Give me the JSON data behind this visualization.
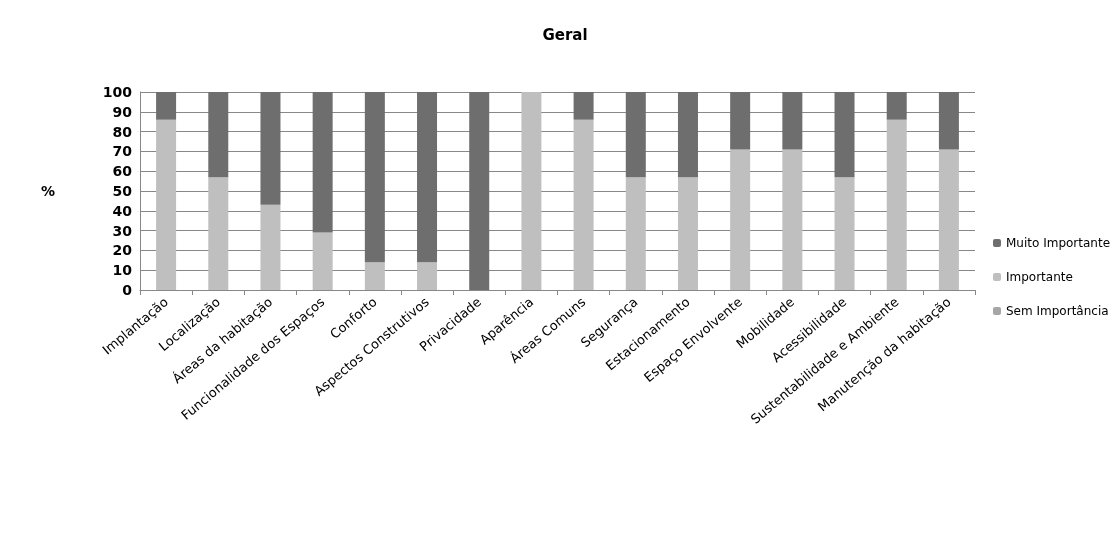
{
  "chart_data": {
    "type": "bar",
    "title": "Geral",
    "ylabel": "%",
    "stacked": true,
    "categories": [
      "Implantação",
      "Localização",
      "Áreas da habitação",
      "Funcionalidade dos Espaços",
      "Conforto",
      "Aspectos Construtivos",
      "Privacidade",
      "Aparência",
      "Áreas Comuns",
      "Segurança",
      "Estacionamento",
      "Espaço Envolvente",
      "Mobilidade",
      "Acessibilidade",
      "Sustentabilidade e Ambiente",
      "Manutenção da habitação"
    ],
    "series": [
      {
        "name": "Sem Importância",
        "color": "#a6a6a6",
        "values": [
          0,
          0,
          0,
          0,
          0,
          0,
          0,
          0,
          0,
          0,
          0,
          0,
          0,
          0,
          0,
          0
        ]
      },
      {
        "name": "Importante",
        "color": "#bfbfbf",
        "values": [
          86,
          57,
          43,
          29,
          14,
          14,
          0,
          100,
          86,
          57,
          57,
          71,
          71,
          57,
          86,
          71
        ]
      },
      {
        "name": "Muito Importante",
        "color": "#6e6e6e",
        "values": [
          14,
          43,
          57,
          71,
          86,
          86,
          100,
          0,
          14,
          43,
          43,
          29,
          29,
          43,
          14,
          29
        ]
      }
    ],
    "ylim": [
      0,
      100
    ],
    "yticks": [
      0,
      10,
      20,
      30,
      40,
      50,
      60,
      70,
      80,
      90,
      100
    ],
    "grid": "y",
    "legend": "right"
  }
}
